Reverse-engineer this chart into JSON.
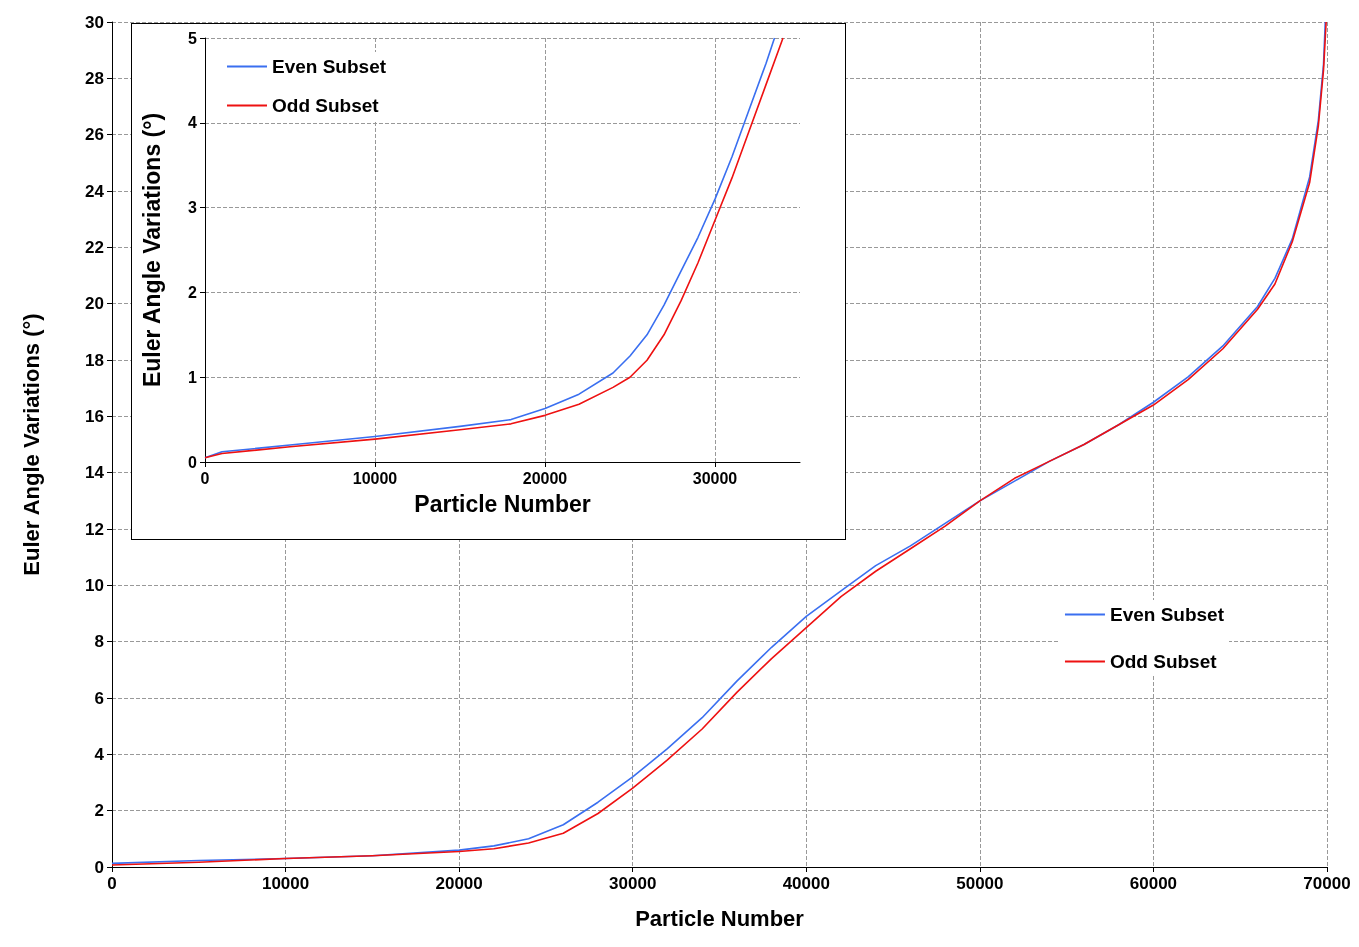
{
  "chart_data": [
    {
      "type": "line",
      "xlabel": "Particle Number",
      "ylabel": "Euler Angle Variations (°)",
      "xlim": [
        0,
        70000
      ],
      "xticks": [
        0,
        10000,
        20000,
        30000,
        40000,
        50000,
        60000,
        70000
      ],
      "ylim": [
        0,
        30
      ],
      "yticks": [
        0,
        2,
        4,
        6,
        8,
        10,
        12,
        14,
        16,
        18,
        20,
        22,
        24,
        26,
        28,
        30
      ],
      "grid": true,
      "legend": "right",
      "marker": "none",
      "line_style": "solid",
      "series": [
        {
          "name": "Even Subset",
          "color": "#3a6ff0",
          "x": [
            0,
            5000,
            10000,
            15000,
            20000,
            22000,
            24000,
            26000,
            28000,
            30000,
            32000,
            34000,
            36000,
            38000,
            40000,
            42000,
            44000,
            46000,
            48000,
            50000,
            52000,
            54000,
            56000,
            58000,
            60000,
            62000,
            64000,
            66000,
            67000,
            68000,
            69000,
            69500,
            69800,
            69900
          ],
          "values": [
            0.13,
            0.23,
            0.3,
            0.4,
            0.6,
            0.75,
            1.0,
            1.5,
            2.3,
            3.2,
            4.2,
            5.3,
            6.6,
            7.8,
            8.9,
            9.8,
            10.7,
            11.4,
            12.2,
            13.0,
            13.7,
            14.4,
            15.0,
            15.7,
            16.5,
            17.4,
            18.5,
            19.9,
            20.9,
            22.3,
            24.5,
            26.5,
            28.5,
            30
          ]
        },
        {
          "name": "Odd Subset",
          "color": "#ee1111",
          "x": [
            0,
            5000,
            10000,
            15000,
            20000,
            22000,
            24000,
            26000,
            28000,
            30000,
            32000,
            34000,
            36000,
            38000,
            40000,
            42000,
            44000,
            46000,
            48000,
            50000,
            52000,
            54000,
            56000,
            58000,
            60000,
            62000,
            64000,
            66000,
            67000,
            68000,
            69000,
            69500,
            69800,
            69950
          ],
          "values": [
            0.07,
            0.17,
            0.3,
            0.4,
            0.55,
            0.65,
            0.85,
            1.2,
            1.9,
            2.8,
            3.8,
            4.9,
            6.2,
            7.4,
            8.5,
            9.6,
            10.5,
            11.3,
            12.1,
            13.0,
            13.8,
            14.4,
            15.0,
            15.7,
            16.4,
            17.3,
            18.4,
            19.8,
            20.7,
            22.2,
            24.3,
            26.3,
            28.3,
            30
          ]
        }
      ]
    },
    {
      "type": "line",
      "xlabel": "Particle Number",
      "ylabel": "Euler Angle Variations (°)",
      "xlim": [
        0,
        35000
      ],
      "xticks": [
        0,
        10000,
        20000,
        30000
      ],
      "ylim": [
        0,
        5
      ],
      "yticks": [
        0,
        1,
        2,
        3,
        4,
        5
      ],
      "grid": true,
      "legend": "top left",
      "marker": "none",
      "line_style": "solid",
      "series": [
        {
          "name": "Even Subset",
          "color": "#3a6ff0",
          "x": [
            0,
            1000,
            5000,
            10000,
            15000,
            18000,
            20000,
            22000,
            24000,
            25000,
            26000,
            27000,
            28000,
            29000,
            30000,
            31000,
            32000,
            33000,
            33500
          ],
          "values": [
            0.05,
            0.12,
            0.2,
            0.3,
            0.42,
            0.5,
            0.63,
            0.8,
            1.05,
            1.25,
            1.5,
            1.85,
            2.25,
            2.65,
            3.1,
            3.6,
            4.15,
            4.7,
            5
          ]
        },
        {
          "name": "Odd Subset",
          "color": "#ee1111",
          "x": [
            0,
            1000,
            5000,
            10000,
            15000,
            18000,
            20000,
            22000,
            24000,
            25000,
            26000,
            27000,
            28000,
            29000,
            30000,
            31000,
            32000,
            33000,
            34000
          ],
          "values": [
            0.05,
            0.1,
            0.18,
            0.27,
            0.38,
            0.45,
            0.55,
            0.68,
            0.88,
            1.0,
            1.2,
            1.5,
            1.9,
            2.35,
            2.85,
            3.35,
            3.9,
            4.45,
            5
          ]
        }
      ]
    }
  ]
}
